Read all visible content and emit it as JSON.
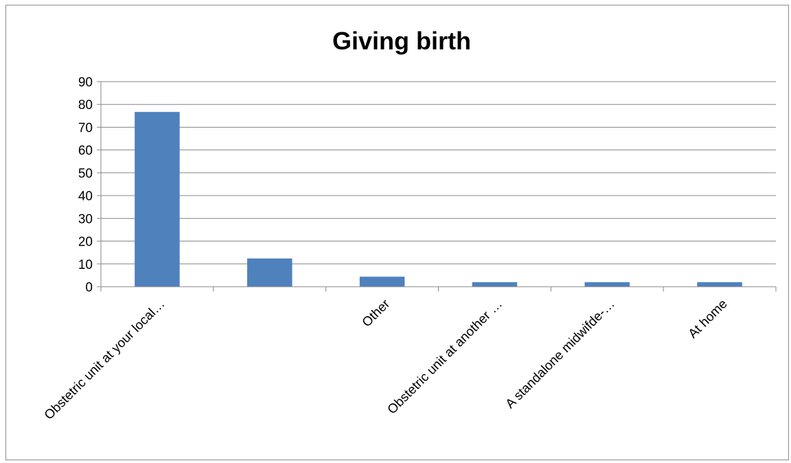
{
  "chart_data": {
    "type": "bar",
    "title": "Giving birth",
    "xlabel": "",
    "ylabel": "",
    "categories": [
      "Obstetric unit at your local…",
      "",
      "Other",
      "Obstetric unit at another …",
      "A standalone midwifde-…",
      "At home"
    ],
    "values": [
      76.7,
      12.4,
      4.4,
      2.0,
      2.0,
      2.0
    ],
    "ylim": [
      0,
      90
    ],
    "yticks": [
      0,
      10,
      20,
      30,
      40,
      50,
      60,
      70,
      80,
      90
    ],
    "grid": true,
    "legend": "none",
    "bar_color": "#4f81bd",
    "grid_color": "#868686",
    "axis_color": "#868686"
  }
}
